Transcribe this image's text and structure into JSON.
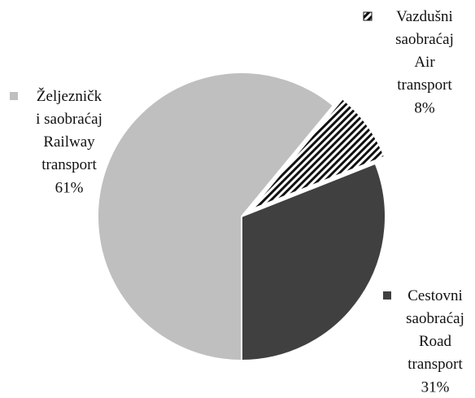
{
  "chart_data": {
    "type": "pie",
    "categories": [
      "Vazdušni\nsaobraćaj\nAir\ntransport",
      "Cestovni\nsaobraćaj\nRoad\ntransport",
      "Željezničk\ni saobraćaj\nRailway\ntransport"
    ],
    "values": [
      8,
      31,
      61
    ],
    "value_labels": [
      "8%",
      "31%",
      "61%"
    ],
    "colors": [
      "hatched",
      "#404040",
      "#bfbfbf"
    ]
  }
}
